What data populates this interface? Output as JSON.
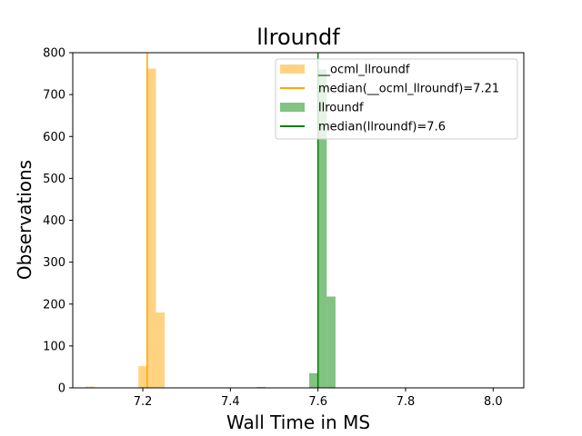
{
  "chart_data": {
    "type": "bar",
    "title": "llroundf",
    "xlabel": "Wall Time in MS",
    "ylabel": "Observations",
    "xlim": [
      7.04,
      8.07
    ],
    "ylim": [
      0,
      800
    ],
    "x_ticks": [
      7.2,
      7.4,
      7.6,
      7.8,
      8.0
    ],
    "x_tick_labels": [
      "7.2",
      "7.4",
      "7.6",
      "7.8",
      "8.0"
    ],
    "y_ticks": [
      0,
      100,
      200,
      300,
      400,
      500,
      600,
      700,
      800
    ],
    "y_tick_labels": [
      "0",
      "100",
      "200",
      "300",
      "400",
      "500",
      "600",
      "700",
      "800"
    ],
    "legend_position": "top-right",
    "series": [
      {
        "name": "__ocml_llroundf",
        "color": "#ffc04d",
        "bins": [
          {
            "x0": 7.07,
            "x1": 7.09,
            "value": 3
          },
          {
            "x0": 7.19,
            "x1": 7.21,
            "value": 52
          },
          {
            "x0": 7.21,
            "x1": 7.23,
            "value": 762
          },
          {
            "x0": 7.23,
            "x1": 7.25,
            "value": 180
          }
        ],
        "median": 7.21,
        "median_label": "median(__ocml_llroundf)=7.21",
        "median_color": "#ffa500"
      },
      {
        "name": "llroundf",
        "color": "#2e9a2e",
        "bins": [
          {
            "x0": 7.46,
            "x1": 7.48,
            "value": 2
          },
          {
            "x0": 7.58,
            "x1": 7.6,
            "value": 35
          },
          {
            "x0": 7.6,
            "x1": 7.62,
            "value": 760
          },
          {
            "x0": 7.62,
            "x1": 7.64,
            "value": 218
          },
          {
            "x0": 7.64,
            "x1": 7.66,
            "value": 1
          }
        ],
        "median": 7.6,
        "median_label": "median(llroundf)=7.6",
        "median_color": "#008000"
      }
    ]
  }
}
